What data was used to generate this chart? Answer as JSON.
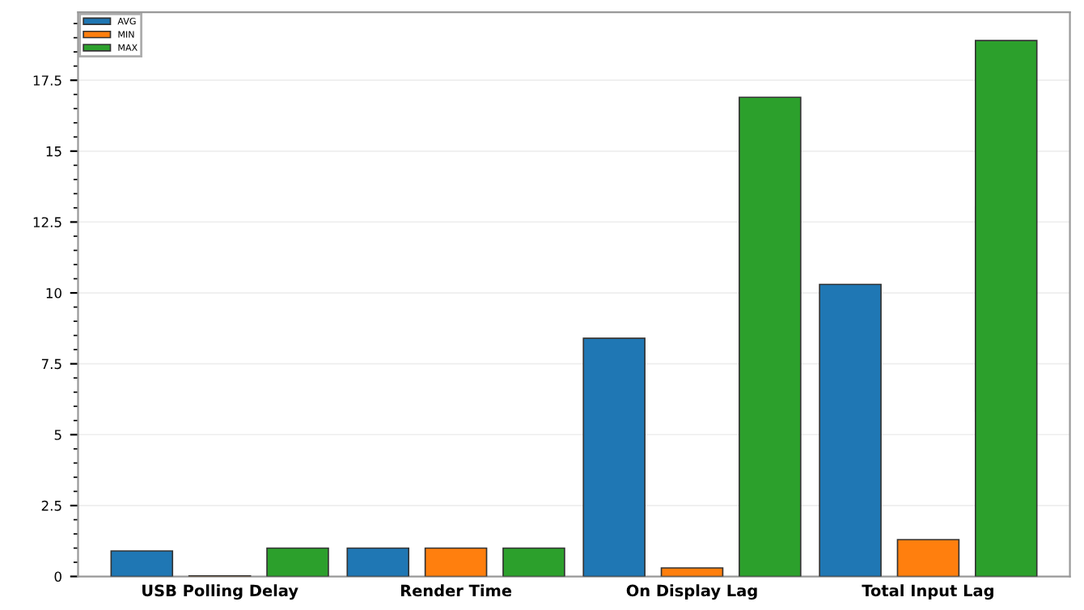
{
  "chart_data": {
    "type": "bar",
    "categories": [
      "USB Polling Delay",
      "Render Time",
      "On Display Lag",
      "Total Input Lag"
    ],
    "series": [
      {
        "name": "AVG",
        "color": "#1f77b4",
        "values": [
          0.9,
          1.0,
          8.4,
          10.3
        ]
      },
      {
        "name": "MIN",
        "color": "#ff7f0e",
        "values": [
          0.02,
          1.0,
          0.3,
          1.3
        ]
      },
      {
        "name": "MAX",
        "color": "#2ca02c",
        "values": [
          1.0,
          1.0,
          16.9,
          18.9
        ]
      }
    ],
    "ylim": [
      0,
      19.9
    ],
    "yticks": [
      0,
      2.5,
      5,
      7.5,
      10,
      12.5,
      15,
      17.5
    ],
    "grid": "y",
    "legend": "top left"
  }
}
